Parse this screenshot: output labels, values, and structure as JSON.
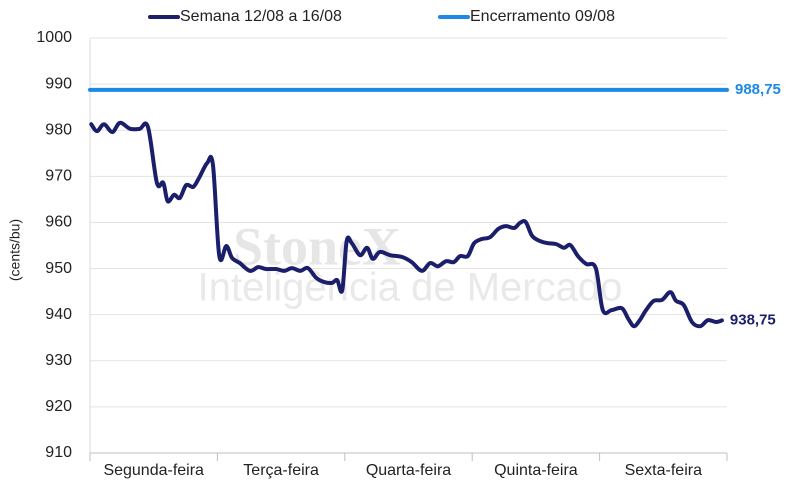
{
  "chart_data": {
    "type": "line",
    "y_label": "(cents/bu)",
    "watermark": [
      "StoneX",
      "Inteligência de Mercado"
    ],
    "legend": "top",
    "grid": true,
    "ylim": [
      910,
      1000
    ],
    "yticks": [
      910,
      920,
      930,
      940,
      950,
      960,
      970,
      980,
      990,
      1000
    ],
    "xlim": [
      0,
      100
    ],
    "xticks": [
      {
        "value": 10,
        "label": "Segunda-feira"
      },
      {
        "value": 30,
        "label": "Terça-feira"
      },
      {
        "value": 50,
        "label": "Quarta-feira"
      },
      {
        "value": 70,
        "label": "Quinta-feira"
      },
      {
        "value": 90,
        "label": "Sexta-feira"
      }
    ],
    "series": [
      {
        "name": "Semana 12/08 a 16/08",
        "color": "#1b1f6b",
        "x": [
          0.2,
          1.1,
          2.2,
          3.5,
          4.7,
          6.3,
          7.8,
          9.1,
          10.5,
          11.5,
          12.2,
          13.2,
          14.1,
          15.1,
          16.2,
          17.1,
          18.4,
          19.3,
          20.3,
          21.4,
          22.3,
          23.5,
          25.1,
          26.4,
          27.6,
          29.2,
          30.5,
          31.7,
          33.0,
          34.2,
          35.5,
          36.7,
          38.0,
          38.8,
          39.6,
          40.3,
          41.1,
          42.4,
          43.5,
          44.4,
          45.5,
          47.1,
          49.0,
          50.5,
          52.1,
          53.4,
          54.6,
          55.9,
          57.1,
          58.1,
          59.3,
          60.3,
          61.5,
          62.8,
          64.1,
          65.3,
          66.6,
          67.5,
          68.4,
          69.4,
          70.6,
          71.9,
          73.2,
          74.4,
          75.4,
          76.6,
          77.9,
          79.4,
          80.5,
          81.9,
          83.5,
          84.5,
          85.4,
          86.3,
          87.3,
          88.5,
          89.8,
          91.1,
          92.0,
          93.2,
          94.5,
          95.8,
          97.0,
          98.3,
          99.2
        ],
        "values": [
          981.3,
          979.8,
          981.3,
          979.6,
          981.6,
          980.3,
          980.3,
          980.7,
          968.6,
          968.6,
          964.6,
          966,
          965.3,
          968.1,
          967.7,
          969.6,
          972.9,
          972.5,
          952.7,
          954.9,
          952.3,
          951.2,
          949.5,
          950.3,
          949.9,
          949.9,
          949.5,
          950.1,
          949.5,
          950.1,
          948,
          947.1,
          946.9,
          947.5,
          945.3,
          956,
          955.5,
          952.9,
          954.5,
          952.1,
          953.6,
          952.9,
          952.5,
          951.4,
          949.5,
          951.2,
          950.5,
          951.6,
          951.4,
          952.7,
          952.7,
          955.5,
          956.4,
          956.8,
          958.6,
          959.2,
          958.8,
          959.9,
          960.1,
          957.1,
          956,
          955.5,
          955.3,
          954.5,
          955.1,
          952.7,
          951,
          950.1,
          941,
          941,
          941.4,
          939.1,
          937.5,
          938.8,
          941,
          943,
          943.2,
          944.9,
          943,
          942.1,
          938.4,
          937.5,
          938.8,
          938.4,
          938.75
        ],
        "value_labels": [
          null,
          null,
          null,
          null,
          null,
          null,
          null,
          null,
          null,
          null,
          null,
          null,
          null,
          null,
          null,
          null,
          null,
          null,
          null,
          null,
          null,
          null,
          null,
          null,
          null,
          null,
          null,
          null,
          null,
          null,
          null,
          null,
          null,
          null,
          null,
          null,
          null,
          null,
          null,
          null,
          null,
          null,
          null,
          null,
          null,
          null,
          null,
          null,
          null,
          null,
          null,
          null,
          null,
          null,
          null,
          null,
          null,
          null,
          null,
          null,
          null,
          null,
          null,
          null,
          null,
          null,
          null,
          null,
          null,
          null,
          null,
          null,
          null,
          null,
          null,
          null,
          null,
          null,
          null,
          null,
          null,
          null,
          null,
          null,
          "938,75"
        ]
      },
      {
        "name": "Encerramento 09/08",
        "color": "#1e88e5",
        "x": [
          0,
          100
        ],
        "values": [
          988.75,
          988.75
        ],
        "value_labels": [
          null,
          "988,75"
        ]
      }
    ]
  }
}
